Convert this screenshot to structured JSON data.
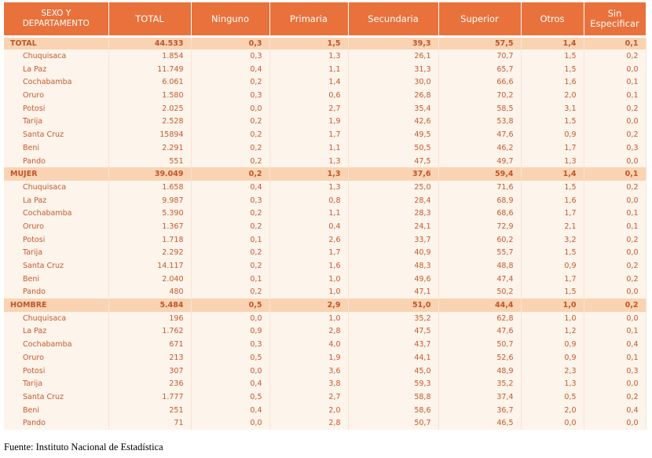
{
  "table": {
    "header": [
      "SEXO Y DEPARTAMENTO",
      "TOTAL",
      "Ninguno",
      "Primaria",
      "Secundaria",
      "Superior",
      "Otros",
      "Sin Especificar"
    ],
    "sections": [
      {
        "total": [
          "TOTAL",
          "44.533",
          "0,3",
          "1,5",
          "39,3",
          "57,5",
          "1,4",
          "0,1"
        ],
        "rows": [
          [
            "Chuquisaca",
            "1.854",
            "0,3",
            "1,3",
            "26,1",
            "70,7",
            "1,5",
            "0,2"
          ],
          [
            "La Paz",
            "11.749",
            "0,4",
            "1,1",
            "31,3",
            "65,7",
            "1,5",
            "0,0"
          ],
          [
            "Cochabamba",
            "6.061",
            "0,2",
            "1,4",
            "30,0",
            "66,6",
            "1,6",
            "0,1"
          ],
          [
            "Oruro",
            "1.580",
            "0,3",
            "0,6",
            "26,8",
            "70,2",
            "2,0",
            "0,1"
          ],
          [
            "Potosi",
            "2.025",
            "0,0",
            "2,7",
            "35,4",
            "58,5",
            "3,1",
            "0,2"
          ],
          [
            "Tarija",
            "2.528",
            "0,2",
            "1,9",
            "42,6",
            "53,8",
            "1,5",
            "0,0"
          ],
          [
            "Santa Cruz",
            "15894",
            "0,2",
            "1,7",
            "49,5",
            "47,6",
            "0,9",
            "0,2"
          ],
          [
            "Beni",
            "2.291",
            "0,2",
            "1,1",
            "50,5",
            "46,2",
            "1,7",
            "0,3"
          ],
          [
            "Pando",
            "551",
            "0,2",
            "1,3",
            "47,5",
            "49,7",
            "1,3",
            "0,0"
          ]
        ]
      },
      {
        "total": [
          "MUJER",
          "39.049",
          "0,2",
          "1,3",
          "37,6",
          "59,4",
          "1,4",
          "0,1"
        ],
        "rows": [
          [
            "Chuquisaca",
            "1.658",
            "0,4",
            "1,3",
            "25,0",
            "71,6",
            "1,5",
            "0,2"
          ],
          [
            "La Paz",
            "9.987",
            "0,3",
            "0,8",
            "28,4",
            "68,9",
            "1,6",
            "0,0"
          ],
          [
            "Cochabamba",
            "5.390",
            "0,2",
            "1,1",
            "28,3",
            "68,6",
            "1,7",
            "0,1"
          ],
          [
            "Oruro",
            "1.367",
            "0,2",
            "0,4",
            "24,1",
            "72,9",
            "2,1",
            "0,1"
          ],
          [
            "Potosi",
            "1.718",
            "0,1",
            "2,6",
            "33,7",
            "60,2",
            "3,2",
            "0,2"
          ],
          [
            "Tarija",
            "2.292",
            "0,2",
            "1,7",
            "40,9",
            "55,7",
            "1,5",
            "0,0"
          ],
          [
            "Santa Cruz",
            "14.117",
            "0,2",
            "1,6",
            "48,3",
            "48,8",
            "0,9",
            "0,2"
          ],
          [
            "Beni",
            "2.040",
            "0,1",
            "1,0",
            "49,6",
            "47,4",
            "1,7",
            "0,2"
          ],
          [
            "Pando",
            "480",
            "0,2",
            "1,0",
            "47,1",
            "50,2",
            "1,5",
            "0,0"
          ]
        ]
      },
      {
        "total": [
          "HOMBRE",
          "5.484",
          "0,5",
          "2,9",
          "51,0",
          "44,4",
          "1,0",
          "0,2"
        ],
        "rows": [
          [
            "Chuquisaca",
            "196",
            "0,0",
            "1,0",
            "35,2",
            "62,8",
            "1,0",
            "0,0"
          ],
          [
            "La Paz",
            "1.762",
            "0,9",
            "2,8",
            "47,5",
            "47,6",
            "1,2",
            "0,1"
          ],
          [
            "Cochabamba",
            "671",
            "0,3",
            "4,0",
            "43,7",
            "50,7",
            "0,9",
            "0,4"
          ],
          [
            "Oruro",
            "213",
            "0,5",
            "1,9",
            "44,1",
            "52,6",
            "0,9",
            "0,1"
          ],
          [
            "Potosi",
            "307",
            "0,0",
            "3,6",
            "45,0",
            "48,9",
            "2,3",
            "0,3"
          ],
          [
            "Tarija",
            "236",
            "0,4",
            "3,8",
            "59,3",
            "35,2",
            "1,3",
            "0,0"
          ],
          [
            "Santa Cruz",
            "1.777",
            "0,5",
            "2,7",
            "58,8",
            "37,4",
            "0,5",
            "0,2"
          ],
          [
            "Beni",
            "251",
            "0,4",
            "2,0",
            "58,6",
            "36,7",
            "2,0",
            "0,4"
          ],
          [
            "Pando",
            "71",
            "0,0",
            "2,8",
            "50,7",
            "46,5",
            "0,0",
            "0,0"
          ]
        ]
      }
    ]
  },
  "footer": {
    "source": "Fuente: Instituto Nacional de Estadística"
  }
}
